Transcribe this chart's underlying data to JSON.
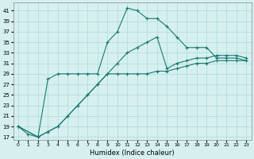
{
  "xlabel": "Humidex (Indice chaleur)",
  "bg_color": "#d6f0f0",
  "line_color": "#1a7a6e",
  "grid_color": "#aed8d8",
  "x_ticks": [
    0,
    1,
    2,
    3,
    4,
    5,
    6,
    7,
    8,
    9,
    10,
    11,
    12,
    13,
    14,
    15,
    16,
    17,
    18,
    19,
    20,
    21,
    22,
    23
  ],
  "y_ticks": [
    17,
    19,
    21,
    23,
    25,
    27,
    29,
    31,
    33,
    35,
    37,
    39,
    41
  ],
  "ylim": [
    16.5,
    42.5
  ],
  "xlim": [
    -0.5,
    23.5
  ],
  "series1_x": [
    0,
    1,
    2,
    3,
    4,
    5,
    6,
    7,
    8,
    9,
    10,
    11,
    12,
    13,
    14,
    15,
    16,
    17,
    18,
    19,
    20,
    21,
    22,
    23
  ],
  "series1_y": [
    19,
    17.5,
    17,
    28,
    29,
    29,
    29,
    29,
    29,
    35,
    37,
    41.5,
    41,
    39.5,
    39.5,
    38,
    36,
    34,
    34,
    34,
    32,
    32,
    32,
    31.5
  ],
  "series2_x": [
    0,
    2,
    3,
    4,
    5,
    6,
    7,
    8,
    9,
    10,
    11,
    12,
    13,
    14,
    15,
    16,
    17,
    18,
    19,
    20,
    21,
    22,
    23
  ],
  "series2_y": [
    19,
    17,
    18,
    19,
    21,
    23,
    25,
    27,
    29,
    31,
    33,
    34,
    35,
    36,
    30,
    31,
    31.5,
    32,
    32,
    32.5,
    32.5,
    32.5,
    32
  ],
  "series3_x": [
    0,
    2,
    3,
    4,
    5,
    6,
    7,
    8,
    9,
    10,
    11,
    12,
    13,
    14,
    15,
    16,
    17,
    18,
    19,
    20,
    21,
    22,
    23
  ],
  "series3_y": [
    19,
    17,
    18,
    19,
    21,
    23,
    25,
    27,
    29,
    29,
    29,
    29,
    29,
    29.5,
    29.5,
    30,
    30.5,
    31,
    31,
    31.5,
    31.5,
    31.5,
    31.5
  ]
}
